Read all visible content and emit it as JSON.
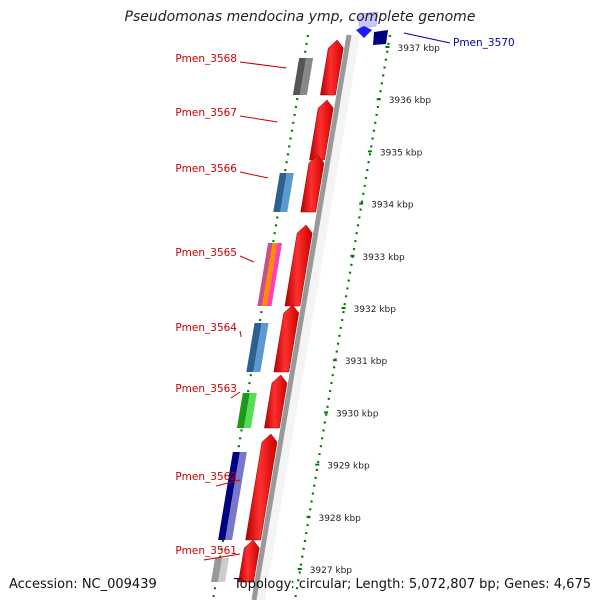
{
  "title": "Pseudomonas mendocina ymp, complete genome",
  "footer": {
    "accession": "Accession: NC_009439",
    "topology": "Topology: circular; Length: 5,072,807 bp; Genes: 4,675"
  },
  "colors": {
    "gene_label": "#cc0000",
    "highlight_label": "#0000aa",
    "gene_fill": "#ff0000",
    "backbone": "#999999",
    "dotted": "#007700"
  },
  "kbp_ticks": [
    "3937 kbp",
    "3936 kbp",
    "3935 kbp",
    "3934 kbp",
    "3933 kbp",
    "3932 kbp",
    "3931 kbp",
    "3930 kbp",
    "3929 kbp",
    "3928 kbp",
    "3927 kbp"
  ],
  "genes": [
    {
      "label": "Pmen_3568",
      "cog": [
        "#555555",
        "#888888"
      ]
    },
    {
      "label": "Pmen_3567",
      "cog": []
    },
    {
      "label": "Pmen_3566",
      "cog": [
        "#2d5f8f",
        "#5b9ad0"
      ]
    },
    {
      "label": "Pmen_3565",
      "cog": [
        "#c8508a",
        "#ff8c00",
        "#ff40b0"
      ]
    },
    {
      "label": "Pmen_3564",
      "cog": [
        "#2d5f8f",
        "#5b9ad0"
      ]
    },
    {
      "label": "Pmen_3563",
      "cog": [
        "#1a9a1a",
        "#55dd55"
      ]
    },
    {
      "label": "Pmen_3562",
      "cog": [
        "#000080",
        "#7777cc"
      ]
    },
    {
      "label": "Pmen_3561",
      "cog": [
        "#999999",
        "#cccccc"
      ]
    }
  ],
  "highlight_gene": {
    "label": "Pmen_3570"
  }
}
